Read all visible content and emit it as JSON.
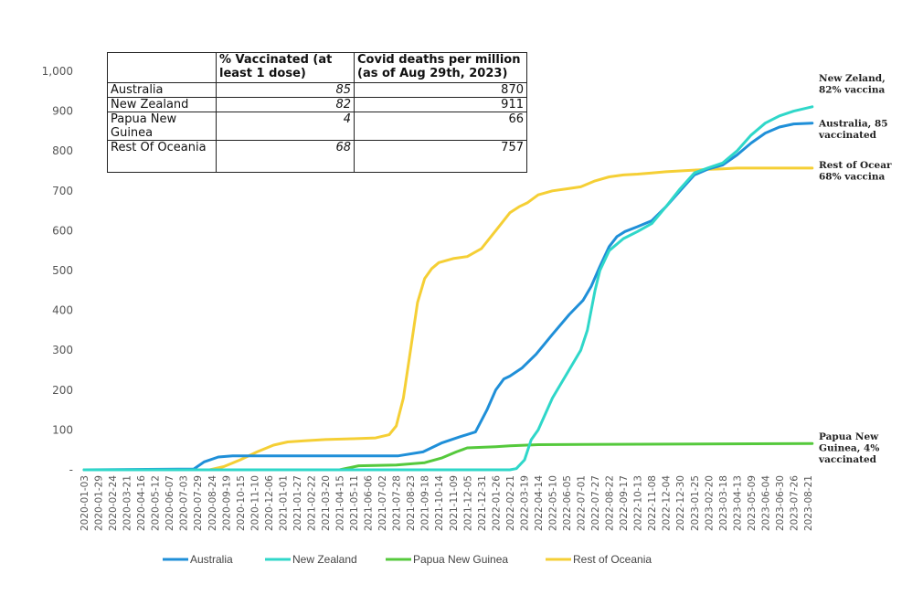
{
  "chart_data": {
    "type": "line",
    "title": "",
    "xlabel": "",
    "ylabel": "",
    "ylim": [
      0,
      1000
    ],
    "yticks": [
      "-",
      "100",
      "200",
      "300",
      "400",
      "500",
      "600",
      "700",
      "800",
      "900",
      "1,000"
    ],
    "grid": false,
    "legend_position": "bottom",
    "x_ticks": [
      "2020-01-03",
      "2020-01-29",
      "2020-02-24",
      "2020-03-21",
      "2020-04-16",
      "2020-05-12",
      "2020-06-07",
      "2020-07-03",
      "2020-07-29",
      "2020-08-24",
      "2020-09-19",
      "2020-10-15",
      "2020-11-10",
      "2020-12-06",
      "2021-01-01",
      "2021-01-27",
      "2021-02-22",
      "2021-03-20",
      "2021-04-15",
      "2021-05-11",
      "2021-06-06",
      "2021-07-02",
      "2021-07-28",
      "2021-08-23",
      "2021-09-18",
      "2021-10-14",
      "2021-11-09",
      "2021-12-05",
      "2021-12-31",
      "2022-01-26",
      "2022-02-21",
      "2022-03-19",
      "2022-04-14",
      "2022-05-10",
      "2022-06-05",
      "2022-07-01",
      "2022-07-27",
      "2022-08-22",
      "2022-09-17",
      "2022-10-13",
      "2022-11-08",
      "2022-12-04",
      "2022-12-30",
      "2023-01-25",
      "2023-02-20",
      "2023-03-18",
      "2023-04-13",
      "2023-05-09",
      "2023-06-04",
      "2023-06-30",
      "2023-07-26",
      "2023-08-21"
    ],
    "series": [
      {
        "name": "Australia",
        "color": "#1f8fd8",
        "x": [
          "2020-01-03",
          "2020-07-22",
          "2020-08-10",
          "2020-09-05",
          "2020-10-01",
          "2021-08-01",
          "2021-09-15",
          "2021-10-20",
          "2021-11-20",
          "2021-12-20",
          "2022-01-10",
          "2022-01-26",
          "2022-02-10",
          "2022-02-21",
          "2022-03-15",
          "2022-04-10",
          "2022-05-10",
          "2022-06-10",
          "2022-07-05",
          "2022-07-20",
          "2022-08-05",
          "2022-08-22",
          "2022-09-05",
          "2022-09-20",
          "2022-10-13",
          "2022-11-08",
          "2022-12-04",
          "2022-12-30",
          "2023-01-25",
          "2023-02-20",
          "2023-03-18",
          "2023-04-13",
          "2023-05-09",
          "2023-06-04",
          "2023-06-30",
          "2023-07-26",
          "2023-08-29"
        ],
        "values": [
          0,
          2,
          20,
          32,
          35,
          35,
          45,
          68,
          82,
          95,
          150,
          200,
          228,
          235,
          255,
          290,
          340,
          390,
          425,
          460,
          510,
          560,
          585,
          598,
          610,
          625,
          660,
          700,
          740,
          755,
          765,
          790,
          820,
          845,
          860,
          868,
          870
        ]
      },
      {
        "name": "New Zealand",
        "color": "#2fd7c9",
        "x": [
          "2020-01-03",
          "2022-02-21",
          "2022-03-05",
          "2022-03-20",
          "2022-04-01",
          "2022-04-14",
          "2022-05-10",
          "2022-06-05",
          "2022-07-01",
          "2022-07-13",
          "2022-07-20",
          "2022-07-27",
          "2022-08-05",
          "2022-08-22",
          "2022-09-17",
          "2022-10-13",
          "2022-11-08",
          "2022-12-04",
          "2022-12-30",
          "2023-01-25",
          "2023-02-20",
          "2023-03-18",
          "2023-04-13",
          "2023-05-09",
          "2023-06-04",
          "2023-06-30",
          "2023-07-26",
          "2023-08-29"
        ],
        "values": [
          0,
          0,
          3,
          25,
          75,
          100,
          180,
          240,
          300,
          350,
          400,
          450,
          500,
          550,
          580,
          598,
          618,
          660,
          705,
          745,
          758,
          770,
          800,
          840,
          870,
          888,
          900,
          911
        ]
      },
      {
        "name": "Papua New Guinea",
        "color": "#55c93c",
        "x": [
          "2020-01-03",
          "2021-04-15",
          "2021-05-20",
          "2021-07-28",
          "2021-09-18",
          "2021-10-20",
          "2021-11-15",
          "2021-12-05",
          "2022-01-26",
          "2022-02-21",
          "2022-04-14",
          "2023-08-29"
        ],
        "values": [
          0,
          0,
          10,
          12,
          18,
          30,
          45,
          55,
          58,
          60,
          63,
          66
        ]
      },
      {
        "name": "Rest of Oceania",
        "color": "#f5cf35",
        "x": [
          "2020-01-03",
          "2020-08-20",
          "2020-09-15",
          "2020-10-15",
          "2020-11-15",
          "2020-12-15",
          "2021-01-10",
          "2021-02-10",
          "2021-03-20",
          "2021-05-10",
          "2021-06-20",
          "2021-07-15",
          "2021-07-28",
          "2021-08-10",
          "2021-08-23",
          "2021-09-05",
          "2021-09-18",
          "2021-10-01",
          "2021-10-14",
          "2021-11-09",
          "2021-12-05",
          "2021-12-31",
          "2022-01-26",
          "2022-02-21",
          "2022-03-10",
          "2022-03-25",
          "2022-04-14",
          "2022-05-10",
          "2022-06-05",
          "2022-07-01",
          "2022-07-27",
          "2022-08-22",
          "2022-09-17",
          "2022-10-13",
          "2022-11-08",
          "2022-12-04",
          "2022-12-30",
          "2023-01-25",
          "2023-02-20",
          "2023-03-18",
          "2023-04-13",
          "2023-08-29"
        ],
        "values": [
          0,
          0,
          8,
          25,
          45,
          62,
          70,
          73,
          76,
          78,
          80,
          88,
          110,
          180,
          300,
          420,
          480,
          505,
          520,
          530,
          535,
          555,
          600,
          645,
          660,
          670,
          690,
          700,
          705,
          710,
          725,
          735,
          740,
          742,
          745,
          748,
          750,
          752,
          754,
          755,
          757,
          757
        ]
      }
    ],
    "end_labels": [
      {
        "series": "New Zealand",
        "lines": [
          "New Zeland,",
          "82% vaccina"
        ]
      },
      {
        "series": "Australia",
        "lines": [
          "Australia, 85",
          "vaccinated"
        ]
      },
      {
        "series": "Rest of Oceania",
        "lines": [
          "Rest of Ocear",
          "68% vaccina"
        ]
      },
      {
        "series": "Papua New Guinea",
        "lines": [
          "Papua New",
          "Guinea, 4%",
          "vaccinated"
        ]
      }
    ]
  },
  "table": {
    "headers": [
      "",
      "% Vaccinated (at least 1 dose)",
      "Covid deaths per million (as of Aug 29th, 2023)"
    ],
    "rows": [
      {
        "name": "Australia",
        "vaccinated": "85",
        "deaths": "870"
      },
      {
        "name": "New Zealand",
        "vaccinated": "82",
        "deaths": "911"
      },
      {
        "name": "Papua New Guinea",
        "vaccinated": "4",
        "deaths": "66"
      },
      {
        "name": "Rest Of Oceania",
        "vaccinated": "68",
        "deaths": "757"
      }
    ]
  }
}
